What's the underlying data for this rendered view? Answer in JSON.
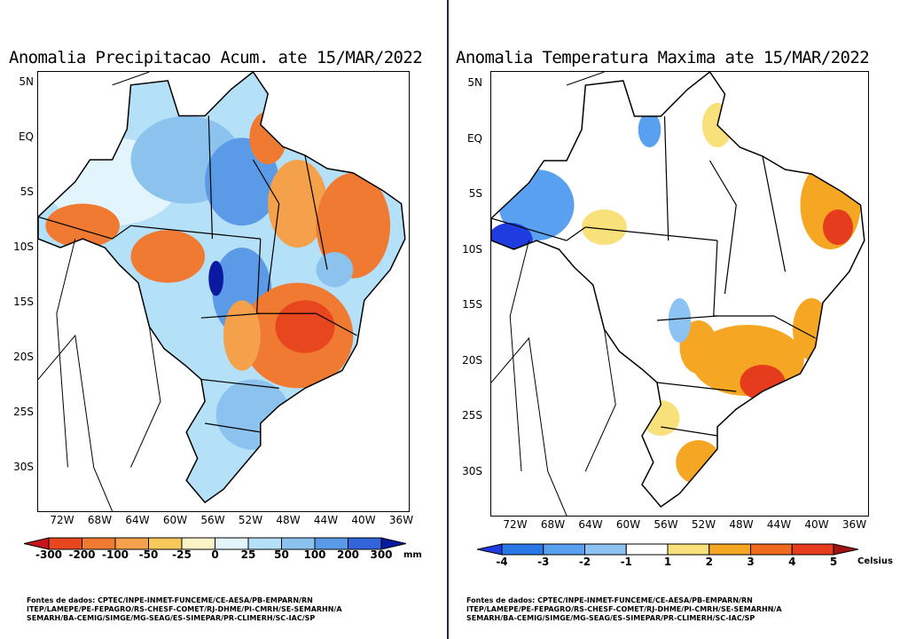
{
  "maps": [
    {
      "title": "Anomalia Precipitacao Acum. ate 15/MAR/2022",
      "lat_labels": [
        "5N",
        "EQ",
        "5S",
        "10S",
        "15S",
        "20S",
        "25S",
        "30S"
      ],
      "lon_labels": [
        "72W",
        "68W",
        "64W",
        "60W",
        "56W",
        "52W",
        "48W",
        "44W",
        "40W",
        "36W"
      ],
      "colorbar": {
        "labels": [
          "-300",
          "-200",
          "-100",
          "-50",
          "-25",
          "0",
          "25",
          "50",
          "100",
          "200",
          "300"
        ],
        "unit": "mm",
        "colors": [
          "#c8141e",
          "#e8461e",
          "#f07a32",
          "#f5a04a",
          "#f8c85a",
          "#fdf3c8",
          "#e2f4fc",
          "#b4e0f8",
          "#8cc3ee",
          "#5a9ae6",
          "#3264dc",
          "#0a1aa0"
        ]
      },
      "sources": [
        "Fontes de dados: CPTEC/INPE-INMET-FUNCEME/CE-AESA/PB-EMPARN/RN",
        "ITEP/LAMEPE/PE-FEPAGRO/RS-CHESF-COMET/RJ-DHME/PI-CMRH/SE-SEMARHN/A",
        "SEMARH/BA-CEMIG/SIMGE/MG-SEAG/ES-SIMEPAR/PR-CLIMERH/SC-IAC/SP"
      ]
    },
    {
      "title": "Anomalia Temperatura Maxima ate 15/MAR/2022",
      "lat_labels": [
        "5N",
        "EQ",
        "5S",
        "10S",
        "15S",
        "20S",
        "25S",
        "30S"
      ],
      "lon_labels": [
        "72W",
        "68W",
        "64W",
        "60W",
        "56W",
        "52W",
        "48W",
        "44W",
        "40W",
        "36W"
      ],
      "colorbar": {
        "labels": [
          "-4",
          "-3",
          "-2",
          "-1",
          "1",
          "2",
          "3",
          "4",
          "5"
        ],
        "unit": "Celsius",
        "colors": [
          "#1e3ce0",
          "#2a78e8",
          "#5aa0f0",
          "#8cc3f2",
          "#ffffff",
          "#f8e07a",
          "#f5a623",
          "#f06a1e",
          "#e63c1e",
          "#a01414"
        ]
      },
      "sources": [
        "Fontes de dados: CPTEC/INPE-INMET-FUNCEME/CE-AESA/PB-EMPARN/RN",
        "ITEP/LAMEPE/PE-FEPAGRO/RS-CHESF-COMET/RJ-DHME/PI-CMRH/SE-SEMARHN/A",
        "SEMARH/BA-CEMIG/SIMGE/MG-SEAG/ES-SIMEPAR/PR-CLIMERH/SC-IAC/SP"
      ]
    }
  ]
}
